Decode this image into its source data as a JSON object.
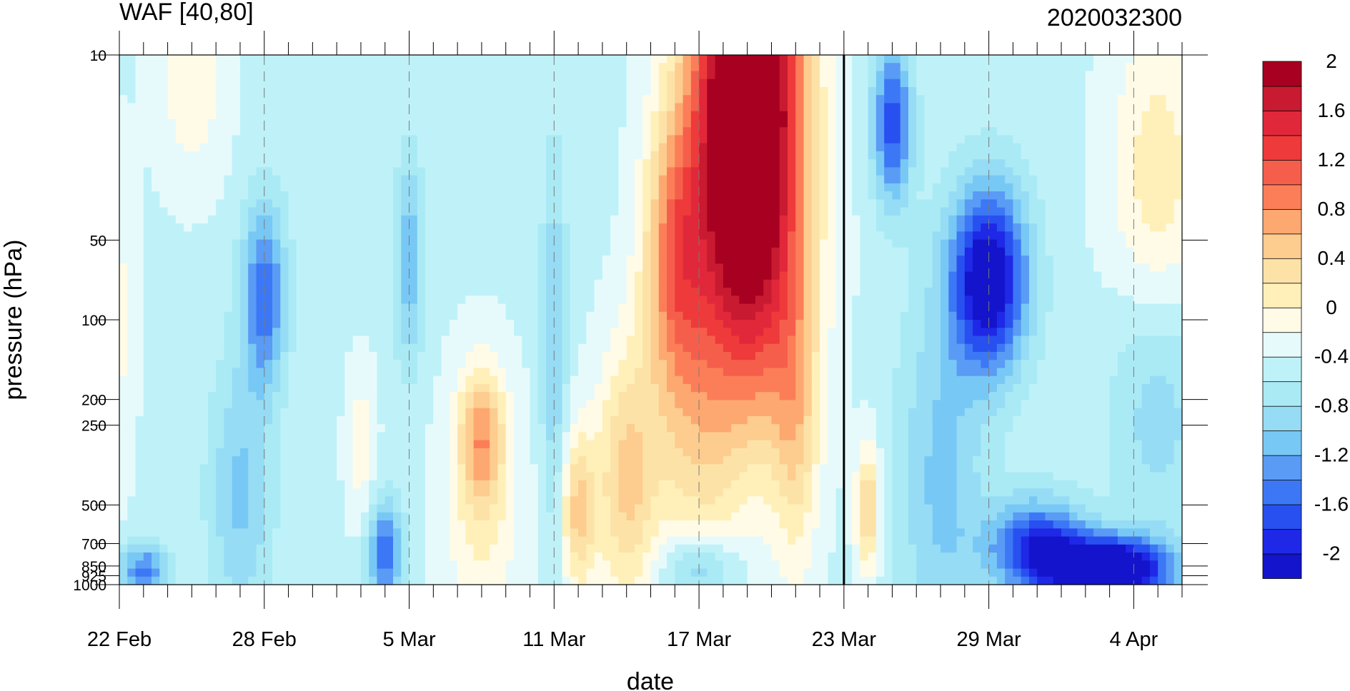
{
  "chart_data": {
    "type": "heatmap",
    "title": "WAF [40,80]",
    "subtitle": "2020032300",
    "xlabel": "date",
    "ylabel": "pressure (hPa)",
    "y_scale": "log",
    "y_reversed": true,
    "xlim": [
      "2020-02-22",
      "2020-04-06"
    ],
    "ylim": [
      1000,
      10
    ],
    "x_ticks": [
      {
        "date": "2020-02-22",
        "label": "22 Feb"
      },
      {
        "date": "2020-02-28",
        "label": "28 Feb"
      },
      {
        "date": "2020-03-05",
        "label": "5 Mar"
      },
      {
        "date": "2020-03-11",
        "label": "11 Mar"
      },
      {
        "date": "2020-03-17",
        "label": "17 Mar"
      },
      {
        "date": "2020-03-23",
        "label": "23 Mar"
      },
      {
        "date": "2020-03-29",
        "label": "29 Mar"
      },
      {
        "date": "2020-04-04",
        "label": "4 Apr"
      }
    ],
    "y_ticks": [
      {
        "value": 10,
        "label": "10"
      },
      {
        "value": 50,
        "label": "50"
      },
      {
        "value": 100,
        "label": "100"
      },
      {
        "value": 200,
        "label": "200"
      },
      {
        "value": 250,
        "label": "250"
      },
      {
        "value": 500,
        "label": "500"
      },
      {
        "value": 700,
        "label": "700"
      },
      {
        "value": 850,
        "label": "850"
      },
      {
        "value": 925,
        "label": "925"
      },
      {
        "value": 1000,
        "label": "1000"
      }
    ],
    "reference_line_date": "2020-03-23",
    "colorbar": {
      "levels": [
        -2.2,
        -2,
        -1.8,
        -1.6,
        -1.4,
        -1.2,
        -1,
        -0.8,
        -0.6,
        -0.4,
        -0.2,
        0,
        0.2,
        0.4,
        0.6,
        0.8,
        1,
        1.2,
        1.4,
        1.6,
        1.8,
        2,
        2.2
      ],
      "colors": [
        "#1414cc",
        "#1e28e6",
        "#2850f0",
        "#3c78f5",
        "#5a9bf5",
        "#78c8f5",
        "#96dcf5",
        "#aaeaf5",
        "#bff2f8",
        "#e6fafc",
        "#fffbe6",
        "#fff0b9",
        "#fde2a8",
        "#fdcc8f",
        "#fda870",
        "#fc7e58",
        "#f65e4c",
        "#ee3a3a",
        "#e0283a",
        "#c81a30",
        "#a80020"
      ],
      "labels": [
        {
          "value": 2,
          "text": "2"
        },
        {
          "value": 1.6,
          "text": "1.6"
        },
        {
          "value": 1.2,
          "text": "1.2"
        },
        {
          "value": 0.8,
          "text": "0.8"
        },
        {
          "value": 0.4,
          "text": "0.4"
        },
        {
          "value": 0,
          "text": "0"
        },
        {
          "value": -0.4,
          "text": "-0.4"
        },
        {
          "value": -0.8,
          "text": "-0.8"
        },
        {
          "value": -1.2,
          "text": "-1.2"
        },
        {
          "value": -1.6,
          "text": "-1.6"
        },
        {
          "value": -2,
          "text": "-2"
        }
      ]
    },
    "field_features": [
      {
        "t": "2020-03-19",
        "p": 14,
        "amp": 3.4,
        "st": 2.2,
        "sp": 0.85
      },
      {
        "t": "2020-03-16",
        "p": 60,
        "amp": 1.2,
        "st": 1.3,
        "sp": 0.55
      },
      {
        "t": "2020-03-19",
        "p": 90,
        "amp": 0.8,
        "st": 2.5,
        "sp": 0.6
      },
      {
        "t": "2020-03-14",
        "p": 400,
        "amp": 0.9,
        "st": 1.3,
        "sp": 0.5
      },
      {
        "t": "2020-03-12",
        "p": 530,
        "amp": 0.9,
        "st": 0.7,
        "sp": 0.3
      },
      {
        "t": "2020-03-08",
        "p": 270,
        "amp": 0.9,
        "st": 0.9,
        "sp": 0.25
      },
      {
        "t": "2020-03-08",
        "p": 500,
        "amp": 0.5,
        "st": 1.6,
        "sp": 0.5
      },
      {
        "t": "2020-03-17",
        "p": 350,
        "amp": 0.5,
        "st": 1.8,
        "sp": 0.5
      },
      {
        "t": "2020-03-21",
        "p": 250,
        "amp": 0.7,
        "st": 1.0,
        "sp": 0.55
      },
      {
        "t": "2020-03-24",
        "p": 520,
        "amp": 0.9,
        "st": 0.5,
        "sp": 0.25
      },
      {
        "t": "2020-03-03",
        "p": 300,
        "amp": 0.4,
        "st": 0.6,
        "sp": 0.3
      },
      {
        "t": "2020-04-05",
        "p": 30,
        "amp": 0.6,
        "st": 2.0,
        "sp": 0.6
      },
      {
        "t": "2020-02-25",
        "p": 12,
        "amp": 0.4,
        "st": 1.5,
        "sp": 0.4
      },
      {
        "t": "2020-02-22",
        "p": 100,
        "amp": 0.3,
        "st": 0.7,
        "sp": 0.6
      },
      {
        "t": "2020-03-29",
        "p": 70,
        "amp": -1.9,
        "st": 1.6,
        "sp": 0.35
      },
      {
        "t": "2020-03-25",
        "p": 18,
        "amp": -1.3,
        "st": 0.8,
        "sp": 0.3
      },
      {
        "t": "2020-04-03",
        "p": 870,
        "amp": -2.2,
        "st": 2.5,
        "sp": 0.12
      },
      {
        "t": "2020-03-31",
        "p": 720,
        "amp": -1.4,
        "st": 2.0,
        "sp": 0.18
      },
      {
        "t": "2020-02-28",
        "p": 80,
        "amp": -1.1,
        "st": 0.9,
        "sp": 0.35
      },
      {
        "t": "2020-03-04",
        "p": 760,
        "amp": -1.1,
        "st": 0.7,
        "sp": 0.2
      },
      {
        "t": "2020-02-23",
        "p": 880,
        "amp": -1.0,
        "st": 1.0,
        "sp": 0.1
      },
      {
        "t": "2020-03-05",
        "p": 60,
        "amp": -0.7,
        "st": 0.6,
        "sp": 0.4
      },
      {
        "t": "2020-03-11",
        "p": 120,
        "amp": -0.6,
        "st": 0.5,
        "sp": 0.7
      },
      {
        "t": "2020-02-27",
        "p": 450,
        "amp": -0.6,
        "st": 1.3,
        "sp": 0.5
      },
      {
        "t": "2020-03-17",
        "p": 860,
        "amp": -0.7,
        "st": 1.5,
        "sp": 0.12
      },
      {
        "t": "2020-03-27",
        "p": 400,
        "amp": -0.6,
        "st": 1.8,
        "sp": 0.7
      },
      {
        "t": "2020-04-05",
        "p": 200,
        "amp": -0.5,
        "st": 2.0,
        "sp": 0.5
      }
    ],
    "field_base": -0.45,
    "field_contours_base": 0
  }
}
